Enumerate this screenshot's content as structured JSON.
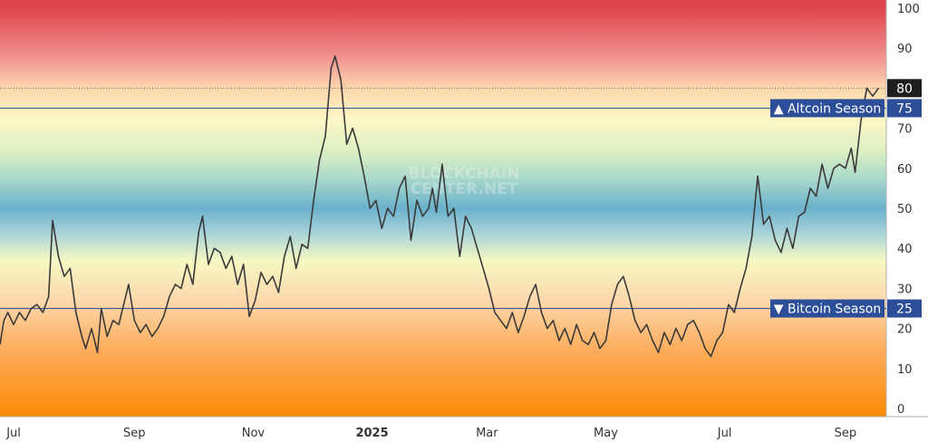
{
  "watermark": {
    "line1": "BLOCKCHAIN",
    "line2": "CENTER.NET"
  },
  "colors": {
    "line": "#3a3a3a",
    "threshold_line": "#3d5a99",
    "label_bg": "#2d4f9a",
    "label_text": "#ffffff",
    "current_bg": "#1e1e1e",
    "axis_text": "#333333",
    "gradient": [
      {
        "value": 100,
        "color": "#e0454c"
      },
      {
        "value": 88,
        "color": "#f1908f"
      },
      {
        "value": 80,
        "color": "#fcd7ad"
      },
      {
        "value": 72,
        "color": "#fdf7c6"
      },
      {
        "value": 64,
        "color": "#dcefc3"
      },
      {
        "value": 57,
        "color": "#a6d6cb"
      },
      {
        "value": 50,
        "color": "#6ab1cc"
      },
      {
        "value": 44,
        "color": "#a7d2d9"
      },
      {
        "value": 37,
        "color": "#f6f8c3"
      },
      {
        "value": 27,
        "color": "#fdd8ac"
      },
      {
        "value": 15,
        "color": "#fcae5e"
      },
      {
        "value": -2,
        "color": "#fb8a05"
      }
    ]
  },
  "labels": {
    "altcoin": {
      "text": "▲ Altcoin Season",
      "value": "75"
    },
    "bitcoin": {
      "text": "▼ Bitcoin Season",
      "value": "25"
    },
    "current": "80"
  },
  "chart_data": {
    "type": "line",
    "title": "",
    "xlabel": "",
    "ylabel": "",
    "ylim": [
      -2,
      102
    ],
    "y_ticks": [
      100,
      90,
      80,
      70,
      60,
      50,
      40,
      30,
      20,
      10,
      0
    ],
    "x_ticks": [
      "Jul",
      "Sep",
      "Nov",
      "2025",
      "Mar",
      "May",
      "Jul",
      "Sep"
    ],
    "x_ticks_bold": [
      false,
      false,
      false,
      true,
      false,
      false,
      false,
      false
    ],
    "x_range": [
      "2024-06-24",
      "2025-09-22"
    ],
    "x_tick_dates": [
      "2024-07-01",
      "2024-09-01",
      "2024-11-01",
      "2025-01-01",
      "2025-03-01",
      "2025-05-01",
      "2025-07-01",
      "2025-09-01"
    ],
    "thresholds": [
      {
        "label": "Altcoin Season",
        "value": 75
      },
      {
        "label": "Bitcoin Season",
        "value": 25
      }
    ],
    "current_value": 80,
    "series": [
      {
        "points": [
          [
            "2024-06-24",
            16
          ],
          [
            "2024-06-26",
            22
          ],
          [
            "2024-06-28",
            24
          ],
          [
            "2024-07-01",
            21
          ],
          [
            "2024-07-04",
            24
          ],
          [
            "2024-07-07",
            22
          ],
          [
            "2024-07-10",
            25
          ],
          [
            "2024-07-13",
            26
          ],
          [
            "2024-07-16",
            24
          ],
          [
            "2024-07-19",
            28
          ],
          [
            "2024-07-21",
            47
          ],
          [
            "2024-07-24",
            38
          ],
          [
            "2024-07-27",
            33
          ],
          [
            "2024-07-30",
            35
          ],
          [
            "2024-08-02",
            24
          ],
          [
            "2024-08-05",
            18
          ],
          [
            "2024-08-07",
            15
          ],
          [
            "2024-08-10",
            20
          ],
          [
            "2024-08-13",
            14
          ],
          [
            "2024-08-15",
            25
          ],
          [
            "2024-08-18",
            18
          ],
          [
            "2024-08-21",
            22
          ],
          [
            "2024-08-24",
            21
          ],
          [
            "2024-08-27",
            27
          ],
          [
            "2024-08-29",
            31
          ],
          [
            "2024-09-01",
            22
          ],
          [
            "2024-09-04",
            19
          ],
          [
            "2024-09-07",
            21
          ],
          [
            "2024-09-10",
            18
          ],
          [
            "2024-09-13",
            20
          ],
          [
            "2024-09-16",
            23
          ],
          [
            "2024-09-19",
            28
          ],
          [
            "2024-09-22",
            31
          ],
          [
            "2024-09-25",
            30
          ],
          [
            "2024-09-28",
            36
          ],
          [
            "2024-10-01",
            31
          ],
          [
            "2024-10-04",
            44
          ],
          [
            "2024-10-06",
            48
          ],
          [
            "2024-10-09",
            36
          ],
          [
            "2024-10-12",
            40
          ],
          [
            "2024-10-15",
            39
          ],
          [
            "2024-10-18",
            35
          ],
          [
            "2024-10-21",
            38
          ],
          [
            "2024-10-24",
            31
          ],
          [
            "2024-10-27",
            36
          ],
          [
            "2024-10-30",
            23
          ],
          [
            "2024-11-02",
            27
          ],
          [
            "2024-11-05",
            34
          ],
          [
            "2024-11-08",
            31
          ],
          [
            "2024-11-11",
            33
          ],
          [
            "2024-11-14",
            29
          ],
          [
            "2024-11-17",
            38
          ],
          [
            "2024-11-20",
            43
          ],
          [
            "2024-11-23",
            35
          ],
          [
            "2024-11-26",
            41
          ],
          [
            "2024-11-29",
            40
          ],
          [
            "2024-12-02",
            52
          ],
          [
            "2024-12-05",
            62
          ],
          [
            "2024-12-08",
            68
          ],
          [
            "2024-12-11",
            85
          ],
          [
            "2024-12-13",
            88
          ],
          [
            "2024-12-16",
            82
          ],
          [
            "2024-12-19",
            66
          ],
          [
            "2024-12-22",
            70
          ],
          [
            "2024-12-25",
            65
          ],
          [
            "2024-12-28",
            58
          ],
          [
            "2024-12-31",
            50
          ],
          [
            "2025-01-03",
            52
          ],
          [
            "2025-01-06",
            45
          ],
          [
            "2025-01-09",
            50
          ],
          [
            "2025-01-12",
            48
          ],
          [
            "2025-01-15",
            55
          ],
          [
            "2025-01-18",
            58
          ],
          [
            "2025-01-21",
            42
          ],
          [
            "2025-01-24",
            52
          ],
          [
            "2025-01-27",
            48
          ],
          [
            "2025-01-30",
            50
          ],
          [
            "2025-02-01",
            55
          ],
          [
            "2025-02-03",
            49
          ],
          [
            "2025-02-06",
            61
          ],
          [
            "2025-02-09",
            48
          ],
          [
            "2025-02-12",
            50
          ],
          [
            "2025-02-15",
            38
          ],
          [
            "2025-02-18",
            48
          ],
          [
            "2025-02-21",
            45
          ],
          [
            "2025-02-24",
            40
          ],
          [
            "2025-02-27",
            35
          ],
          [
            "2025-03-02",
            30
          ],
          [
            "2025-03-05",
            24
          ],
          [
            "2025-03-08",
            22
          ],
          [
            "2025-03-11",
            20
          ],
          [
            "2025-03-14",
            24
          ],
          [
            "2025-03-17",
            19
          ],
          [
            "2025-03-20",
            23
          ],
          [
            "2025-03-23",
            28
          ],
          [
            "2025-03-26",
            31
          ],
          [
            "2025-03-29",
            24
          ],
          [
            "2025-04-01",
            20
          ],
          [
            "2025-04-04",
            22
          ],
          [
            "2025-04-07",
            17
          ],
          [
            "2025-04-10",
            20
          ],
          [
            "2025-04-13",
            16
          ],
          [
            "2025-04-16",
            21
          ],
          [
            "2025-04-19",
            17
          ],
          [
            "2025-04-22",
            16
          ],
          [
            "2025-04-25",
            19
          ],
          [
            "2025-04-28",
            15
          ],
          [
            "2025-05-01",
            17
          ],
          [
            "2025-05-04",
            26
          ],
          [
            "2025-05-07",
            31
          ],
          [
            "2025-05-10",
            33
          ],
          [
            "2025-05-13",
            28
          ],
          [
            "2025-05-16",
            22
          ],
          [
            "2025-05-19",
            19
          ],
          [
            "2025-05-22",
            21
          ],
          [
            "2025-05-25",
            17
          ],
          [
            "2025-05-28",
            14
          ],
          [
            "2025-05-31",
            19
          ],
          [
            "2025-06-03",
            16
          ],
          [
            "2025-06-06",
            20
          ],
          [
            "2025-06-09",
            17
          ],
          [
            "2025-06-12",
            21
          ],
          [
            "2025-06-15",
            22
          ],
          [
            "2025-06-18",
            19
          ],
          [
            "2025-06-21",
            15
          ],
          [
            "2025-06-24",
            13
          ],
          [
            "2025-06-27",
            17
          ],
          [
            "2025-06-30",
            19
          ],
          [
            "2025-07-03",
            26
          ],
          [
            "2025-07-06",
            24
          ],
          [
            "2025-07-09",
            30
          ],
          [
            "2025-07-12",
            35
          ],
          [
            "2025-07-15",
            43
          ],
          [
            "2025-07-18",
            58
          ],
          [
            "2025-07-21",
            46
          ],
          [
            "2025-07-24",
            48
          ],
          [
            "2025-07-27",
            42
          ],
          [
            "2025-07-30",
            39
          ],
          [
            "2025-08-02",
            45
          ],
          [
            "2025-08-05",
            40
          ],
          [
            "2025-08-08",
            48
          ],
          [
            "2025-08-11",
            49
          ],
          [
            "2025-08-14",
            55
          ],
          [
            "2025-08-17",
            53
          ],
          [
            "2025-08-20",
            61
          ],
          [
            "2025-08-23",
            55
          ],
          [
            "2025-08-26",
            60
          ],
          [
            "2025-08-29",
            61
          ],
          [
            "2025-09-01",
            60
          ],
          [
            "2025-09-04",
            65
          ],
          [
            "2025-09-06",
            59
          ],
          [
            "2025-09-09",
            72
          ],
          [
            "2025-09-12",
            80
          ],
          [
            "2025-09-15",
            78
          ],
          [
            "2025-09-18",
            80
          ]
        ]
      }
    ]
  }
}
